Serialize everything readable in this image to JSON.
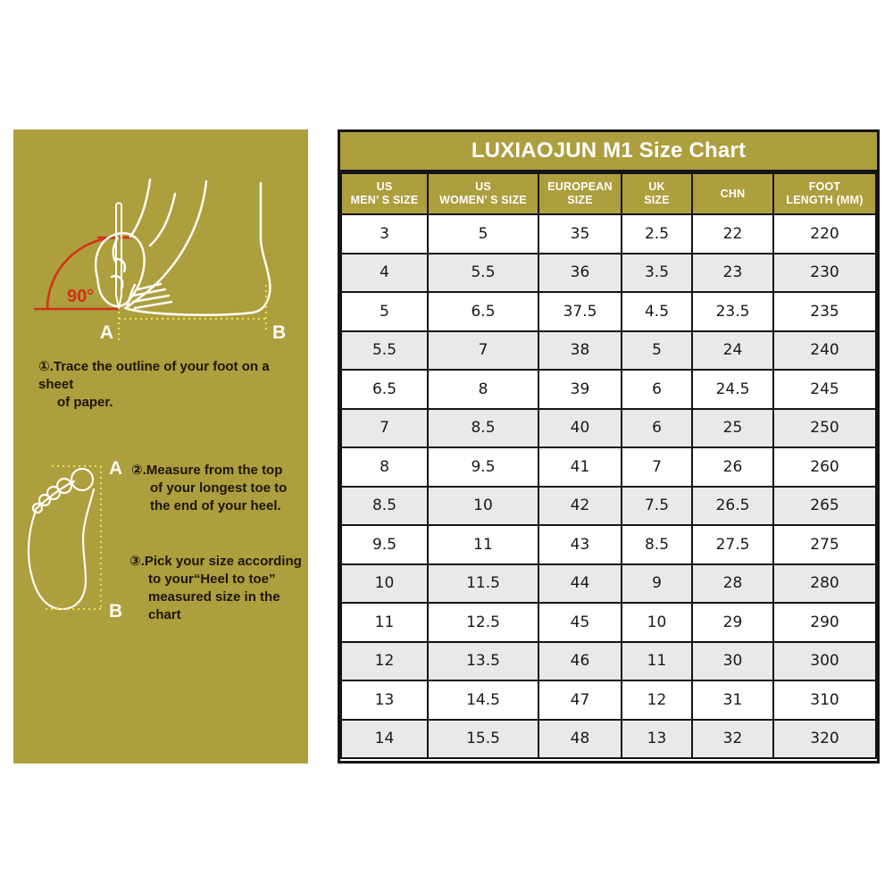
{
  "table": {
    "title": "LUXIAOJUN M1 Size Chart",
    "columns": [
      {
        "lines": [
          "US",
          "MEN’ S SIZE"
        ]
      },
      {
        "lines": [
          "US",
          "WOMEN’ S SIZE"
        ]
      },
      {
        "lines": [
          "EUROPEAN",
          "SIZE"
        ]
      },
      {
        "lines": [
          "UK",
          "SIZE"
        ]
      },
      {
        "lines": [
          "CHN"
        ]
      },
      {
        "lines": [
          "FOOT",
          "LENGTH (MM)"
        ]
      }
    ],
    "rows": [
      [
        "3",
        "5",
        "35",
        "2.5",
        "22",
        "220"
      ],
      [
        "4",
        "5.5",
        "36",
        "3.5",
        "23",
        "230"
      ],
      [
        "5",
        "6.5",
        "37.5",
        "4.5",
        "23.5",
        "235"
      ],
      [
        "5.5",
        "7",
        "38",
        "5",
        "24",
        "240"
      ],
      [
        "6.5",
        "8",
        "39",
        "6",
        "24.5",
        "245"
      ],
      [
        "7",
        "8.5",
        "40",
        "6",
        "25",
        "250"
      ],
      [
        "8",
        "9.5",
        "41",
        "7",
        "26",
        "260"
      ],
      [
        "8.5",
        "10",
        "42",
        "7.5",
        "26.5",
        "265"
      ],
      [
        "9.5",
        "11",
        "43",
        "8.5",
        "27.5",
        "275"
      ],
      [
        "10",
        "11.5",
        "44",
        "9",
        "28",
        "280"
      ],
      [
        "11",
        "12.5",
        "45",
        "10",
        "29",
        "290"
      ],
      [
        "12",
        "13.5",
        "46",
        "11",
        "30",
        "300"
      ],
      [
        "13",
        "14.5",
        "47",
        "12",
        "31",
        "310"
      ],
      [
        "14",
        "15.5",
        "48",
        "13",
        "32",
        "320"
      ]
    ]
  },
  "instructions": {
    "step1": {
      "lines": [
        "①.Trace the outline of your foot on a sheet",
        "of paper."
      ]
    },
    "step2": {
      "lines": [
        "②.Measure from the top",
        "of your longest toe to",
        "the end of your heel."
      ]
    },
    "step3": {
      "lines": [
        "③.Pick your size according",
        "to your“Heel to toe”",
        "measured size in the",
        "chart"
      ]
    }
  },
  "diagram": {
    "tracing": {
      "angle_label": "90°",
      "point_a": "A",
      "point_b": "B"
    },
    "footprint": {
      "point_a": "A",
      "point_b": "B"
    }
  },
  "colors": {
    "panel_olive": "#ad9e3e",
    "row_alt_gray": "#e9e9e9",
    "table_border": "#141414",
    "angle_red": "#d23118",
    "guide_yellow": "#ede34f",
    "outline_white": "#fdfcf5"
  }
}
